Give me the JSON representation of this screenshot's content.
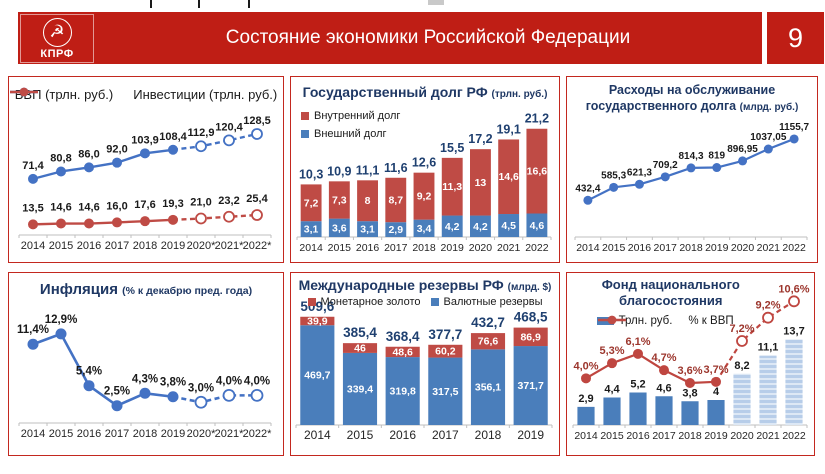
{
  "header": {
    "logo_text": "КПРФ",
    "hammer_sickle_symbol": "☭",
    "title": "Состояние экономики Российской Федерации",
    "page_number": "9"
  },
  "colors": {
    "header_red": "#bf1e15",
    "panel_border_red": "#c3281f",
    "line_blue": "#4472c4",
    "bar_blue": "#4a7ebb",
    "bar_blue_light": "#b7cde9",
    "series_red": "#bf4b45",
    "navy_label": "#1f4070",
    "dark_red_label": "#9c352c"
  },
  "chart_data": [
    {
      "id": "gdp_investments",
      "type": "line",
      "legend": [
        {
          "label": "ВВП (трлн. руб.)",
          "color": "#4472c4"
        },
        {
          "label": "Инвестиции (трлн. руб.)",
          "color": "#bf4b45"
        }
      ],
      "categories": [
        "2014",
        "2015",
        "2016",
        "2017",
        "2018",
        "2019",
        "2020*",
        "2021*",
        "2022*"
      ],
      "forecast_from_index": 5,
      "series": [
        {
          "name": "ВВП (трлн. руб.)",
          "color": "#4472c4",
          "values": [
            71.4,
            80.8,
            86,
            92,
            103.9,
            108.4,
            112.9,
            120.4,
            128.5
          ],
          "labels": [
            "71,4",
            "80,8",
            "86,0",
            "92,0",
            "103,9",
            "108,4",
            "112,9",
            "120,4",
            "128,5"
          ]
        },
        {
          "name": "Инвестиции (трлн. руб.)",
          "color": "#bf4b45",
          "values": [
            13.5,
            14.6,
            14.6,
            16,
            17.6,
            19.3,
            21,
            23.2,
            25.4
          ],
          "labels": [
            "13,5",
            "14,6",
            "14,6",
            "16,0",
            "17,6",
            "19,3",
            "21,0",
            "23,2",
            "25,4"
          ]
        }
      ],
      "ylim": [
        0,
        145
      ]
    },
    {
      "id": "gov_debt",
      "type": "stacked_bar",
      "title": "Государственный долг РФ",
      "title_suffix": "(трлн. руб.)",
      "legend": [
        {
          "label": "Внутренний долг",
          "color": "#bf4b45"
        },
        {
          "label": "Внешний долг",
          "color": "#4a7ebb"
        }
      ],
      "categories": [
        "2014",
        "2015",
        "2016",
        "2017",
        "2018",
        "2019",
        "2020",
        "2021",
        "2022"
      ],
      "series": [
        {
          "name": "Внешний долг",
          "position": "bottom",
          "color": "#4a7ebb",
          "values": [
            3.1,
            3.6,
            3.1,
            2.9,
            3.4,
            4.2,
            4.2,
            4.5,
            4.6
          ],
          "labels": [
            "3,1",
            "3,6",
            "3,1",
            "2,9",
            "3,4",
            "4,2",
            "4,2",
            "4,5",
            "4,6"
          ]
        },
        {
          "name": "Внутренний долг",
          "position": "top",
          "color": "#bf4b45",
          "values": [
            7.2,
            7.3,
            8,
            8.7,
            9.2,
            11.3,
            13,
            14.6,
            16.6
          ],
          "labels": [
            "7,2",
            "7,3",
            "8",
            "8,7",
            "9,2",
            "11,3",
            "13",
            "14,6",
            "16,6"
          ]
        }
      ],
      "totals": [
        "10,3",
        "10,9",
        "11,1",
        "11,6",
        "12,6",
        "15,5",
        "17,2",
        "19,1",
        "21,2"
      ],
      "ylim": [
        0,
        23.5
      ]
    },
    {
      "id": "debt_service",
      "type": "line",
      "title_lines": [
        "Расходы на обслуживание",
        "государственного долга"
      ],
      "title_suffix": "(млрд. руб.)",
      "categories": [
        "2014",
        "2015",
        "2016",
        "2017",
        "2018",
        "2019",
        "2020",
        "2021",
        "2022"
      ],
      "series": [
        {
          "name": "Расходы на обслуживание государственного долга",
          "color": "#4472c4",
          "values": [
            432.4,
            585.3,
            621.3,
            709.2,
            814.3,
            819,
            896.95,
            1037.05,
            1155.7
          ],
          "labels": [
            "432,4",
            "585,3",
            "621,3",
            "709,2",
            "814,3",
            "819",
            "896,95",
            "1037,05",
            "1155,7"
          ]
        }
      ],
      "ylim": [
        0,
        1320
      ]
    },
    {
      "id": "inflation",
      "type": "line",
      "title": "Инфляция",
      "title_suffix": "(% к декабрю пред. года)",
      "categories": [
        "2014",
        "2015",
        "2016",
        "2017",
        "2018",
        "2019",
        "2020*",
        "2021*",
        "2022*"
      ],
      "forecast_from_index": 5,
      "series": [
        {
          "name": "Инфляция",
          "color": "#4472c4",
          "values": [
            11.4,
            12.9,
            5.4,
            2.5,
            4.3,
            3.8,
            3.0,
            4.0,
            4.0
          ],
          "labels": [
            "11,4%",
            "12,9%",
            "5,4%",
            "2,5%",
            "4,3%",
            "3,8%",
            "3,0%",
            "4,0%",
            "4,0%"
          ]
        }
      ],
      "ylim": [
        0,
        16.5
      ]
    },
    {
      "id": "intl_reserves",
      "type": "stacked_bar",
      "title": "Международные резервы РФ",
      "title_suffix": "(млрд. $)",
      "legend": [
        {
          "label": "Монетарное золото",
          "color": "#bf4b45"
        },
        {
          "label": "Валютные резервы",
          "color": "#4a7ebb"
        }
      ],
      "categories": [
        "2014",
        "2015",
        "2016",
        "2017",
        "2018",
        "2019"
      ],
      "series": [
        {
          "name": "Валютные резервы",
          "position": "bottom",
          "color": "#4a7ebb",
          "values": [
            469.7,
            339.4,
            319.8,
            317.5,
            356.1,
            371.7
          ],
          "labels": [
            "469,7",
            "339,4",
            "319,8",
            "317,5",
            "356,1",
            "371,7"
          ]
        },
        {
          "name": "Монетарное золото",
          "position": "top",
          "color": "#bf4b45",
          "values": [
            39.9,
            46,
            48.6,
            60.2,
            76.6,
            86.9
          ],
          "labels": [
            "39,9",
            "46",
            "48,6",
            "60,2",
            "76,6",
            "86,9"
          ]
        }
      ],
      "totals": [
        "509,6",
        "385,4",
        "368,4",
        "377,7",
        "432,7",
        "468,5"
      ],
      "ylim": [
        0,
        565
      ]
    },
    {
      "id": "nwf",
      "type": "combo",
      "title_lines": [
        "Фонд национального",
        "благосостояния"
      ],
      "legend": [
        {
          "label": "Трлн. руб.",
          "color": "#4a7ebb",
          "marker": "bar"
        },
        {
          "label": "% к ВВП",
          "color": "#bf4b45",
          "marker": "line"
        }
      ],
      "categories": [
        "2014",
        "2015",
        "2016",
        "2017",
        "2018",
        "2019",
        "2020",
        "2021",
        "2022"
      ],
      "bars": {
        "name": "Трлн. руб.",
        "color": "#4a7ebb",
        "light_color": "#b7cde9",
        "forecast_from_index": 6,
        "values": [
          2.9,
          4.4,
          5.2,
          4.6,
          3.8,
          4,
          8.2,
          11.1,
          13.7
        ],
        "labels": [
          "2,9",
          "4,4",
          "5,2",
          "4,6",
          "3,8",
          "4",
          "8,2",
          "11,1",
          "13,7"
        ],
        "ylim": [
          0,
          16
        ]
      },
      "line": {
        "name": "% к ВВП",
        "color": "#bf4640",
        "label_color": "#9c352c",
        "forecast_from_index": 5,
        "values": [
          4.0,
          5.3,
          6.1,
          4.7,
          3.6,
          3.7,
          7.2,
          9.2,
          10.6
        ],
        "labels": [
          "4,0%",
          "5,3%",
          "6,1%",
          "4,7%",
          "3,6%",
          "3,7%",
          "7,2%",
          "9,2%",
          "10,6%"
        ],
        "ylim": [
          0,
          12
        ]
      }
    }
  ]
}
